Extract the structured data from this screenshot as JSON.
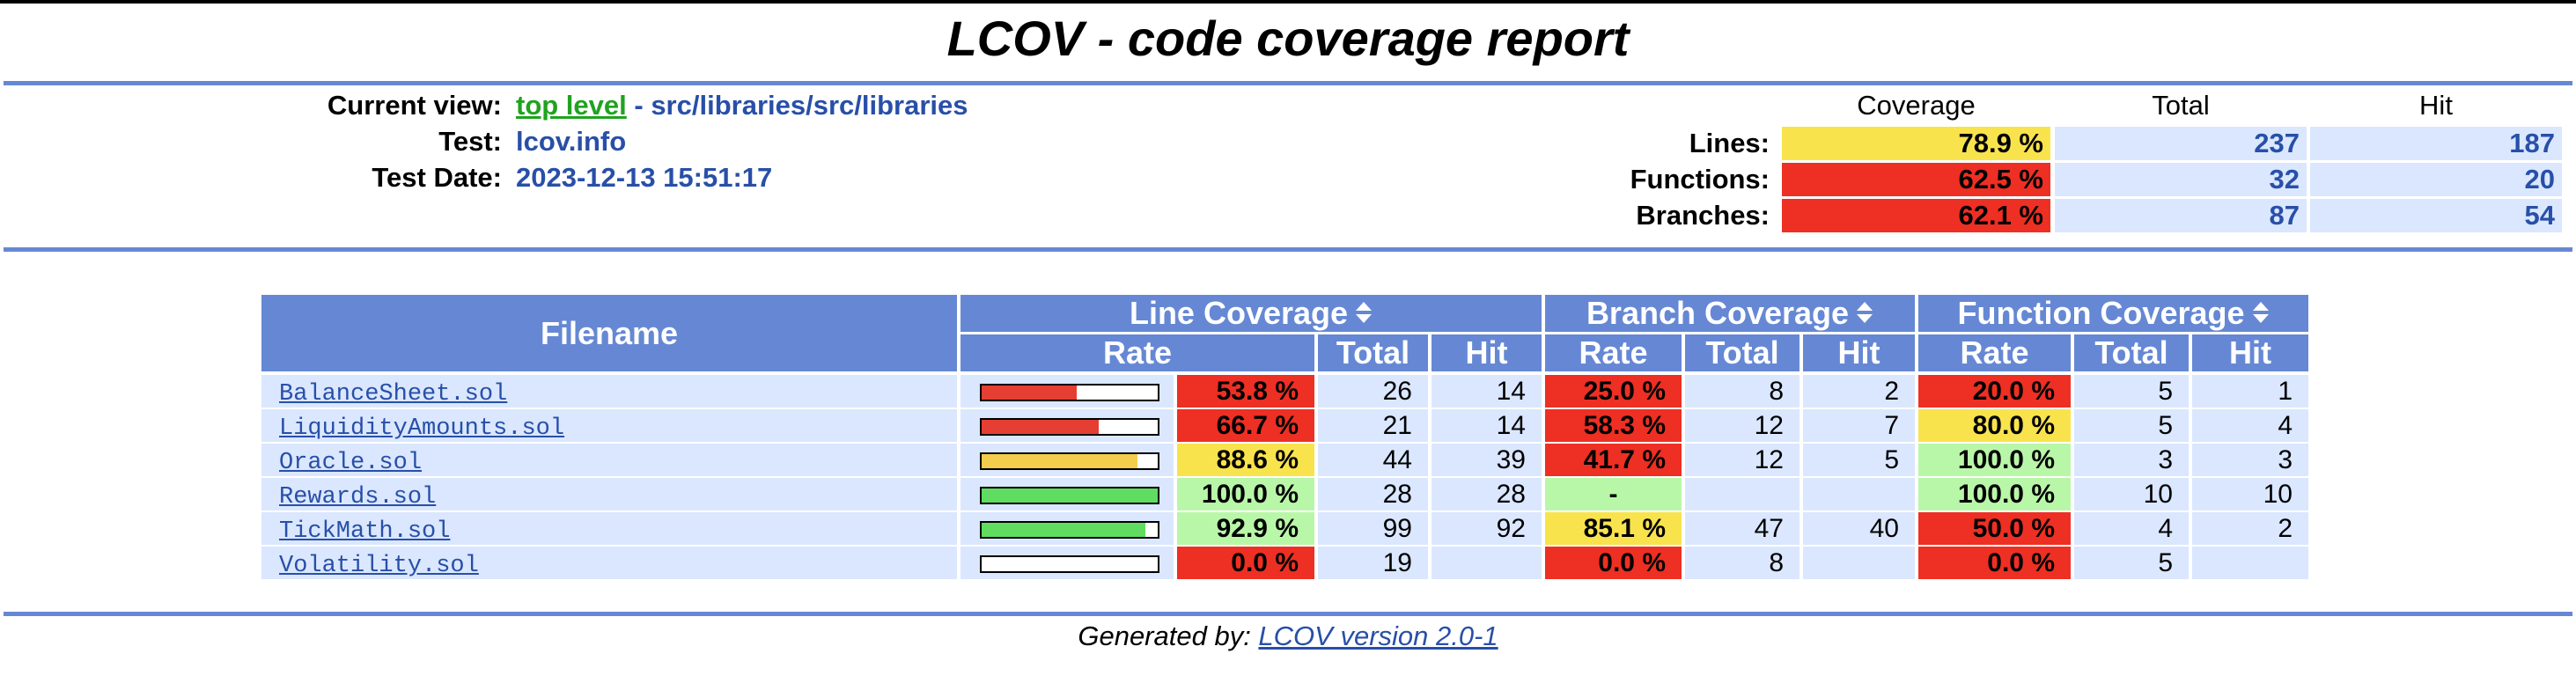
{
  "title": "LCOV - code coverage report",
  "header": {
    "current_view_label": "Current view:",
    "current_view_link": "top level",
    "current_view_path": " - src/libraries/src/libraries",
    "test_label": "Test:",
    "test_value": "lcov.info",
    "test_date_label": "Test Date:",
    "test_date_value": "2023-12-13 15:51:17"
  },
  "summary": {
    "col_coverage": "Coverage",
    "col_total": "Total",
    "col_hit": "Hit",
    "rows": [
      {
        "label": "Lines:",
        "coverage": "78.9 %",
        "total": "237",
        "hit": "187"
      },
      {
        "label": "Functions:",
        "coverage": "62.5 %",
        "total": "32",
        "hit": "20"
      },
      {
        "label": "Branches:",
        "coverage": "62.1 %",
        "total": "87",
        "hit": "54"
      }
    ]
  },
  "table": {
    "filename_header": "Filename",
    "line_coverage_header": "Line Coverage",
    "branch_coverage_header": "Branch Coverage",
    "function_coverage_header": "Function Coverage",
    "rate": "Rate",
    "total": "Total",
    "hit": "Hit",
    "rows": [
      {
        "file": "BalanceSheet.sol",
        "line_fill": 53.8,
        "line_rate": "53.8 %",
        "line_total": "26",
        "line_hit": "14",
        "branch_rate": "25.0 %",
        "branch_total": "8",
        "branch_hit": "2",
        "func_rate": "20.0 %",
        "func_total": "5",
        "func_hit": "1"
      },
      {
        "file": "LiquidityAmounts.sol",
        "line_fill": 66.7,
        "line_rate": "66.7 %",
        "line_total": "21",
        "line_hit": "14",
        "branch_rate": "58.3 %",
        "branch_total": "12",
        "branch_hit": "7",
        "func_rate": "80.0 %",
        "func_total": "5",
        "func_hit": "4"
      },
      {
        "file": "Oracle.sol",
        "line_fill": 88.6,
        "line_rate": "88.6 %",
        "line_total": "44",
        "line_hit": "39",
        "branch_rate": "41.7 %",
        "branch_total": "12",
        "branch_hit": "5",
        "func_rate": "100.0 %",
        "func_total": "3",
        "func_hit": "3"
      },
      {
        "file": "Rewards.sol",
        "line_fill": 100.0,
        "line_rate": "100.0 %",
        "line_total": "28",
        "line_hit": "28",
        "branch_rate": "-",
        "branch_total": "",
        "branch_hit": "",
        "func_rate": "100.0 %",
        "func_total": "10",
        "func_hit": "10"
      },
      {
        "file": "TickMath.sol",
        "line_fill": 92.9,
        "line_rate": "92.9 %",
        "line_total": "99",
        "line_hit": "92",
        "branch_rate": "85.1 %",
        "branch_total": "47",
        "branch_hit": "40",
        "func_rate": "50.0 %",
        "func_total": "4",
        "func_hit": "2"
      },
      {
        "file": "Volatility.sol",
        "line_fill": 0.0,
        "line_rate": "0.0 %",
        "line_total": "19",
        "line_hit": "",
        "branch_rate": "0.0 %",
        "branch_total": "8",
        "branch_hit": "",
        "func_rate": "0.0 %",
        "func_total": "5",
        "func_hit": ""
      }
    ]
  },
  "footer": {
    "prefix": "Generated by: ",
    "link": "LCOV version 2.0-1"
  },
  "colors": {
    "header_blue": "#6688d4",
    "light_blue": "#dae7fe",
    "link_blue": "#284fa8",
    "red": "#ee2f23",
    "yellow": "#f9e34d",
    "green": "#b9f7a8",
    "bar_red": "#e53f33",
    "bar_yellow": "#f5cd4d",
    "bar_green": "#60dd60"
  }
}
